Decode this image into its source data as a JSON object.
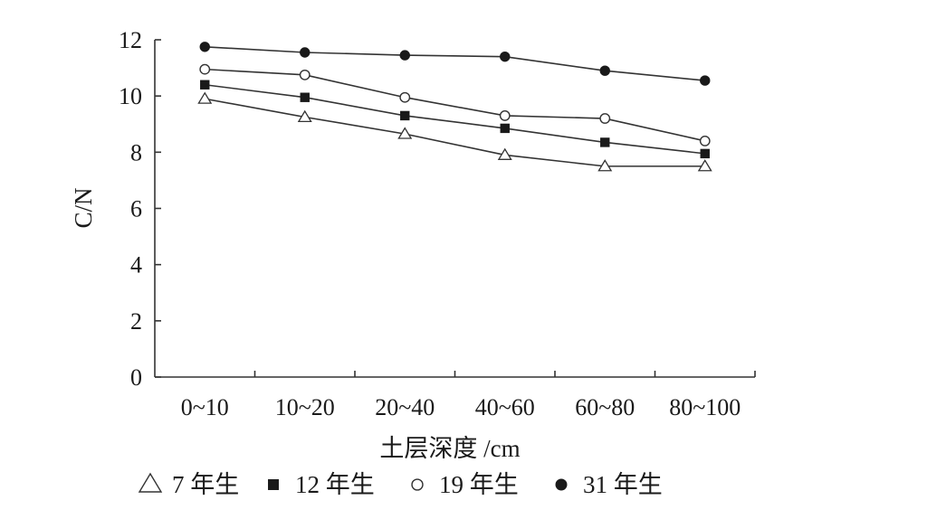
{
  "chart_data": {
    "type": "line",
    "xlabel": "土层深度 /cm",
    "ylabel": "C/N",
    "categories": [
      "0~10",
      "10~20",
      "20~40",
      "40~60",
      "60~80",
      "80~100"
    ],
    "ylim": [
      0,
      12
    ],
    "yticks": [
      0,
      2,
      4,
      6,
      8,
      10,
      12
    ],
    "grid": false,
    "legend_position": "bottom",
    "series": [
      {
        "name": "7 年生",
        "marker": "open-triangle",
        "values": [
          9.9,
          9.25,
          8.65,
          7.9,
          7.5,
          7.5
        ]
      },
      {
        "name": "12 年生",
        "marker": "filled-square",
        "values": [
          10.4,
          9.95,
          9.3,
          8.85,
          8.35,
          7.95
        ]
      },
      {
        "name": "19 年生",
        "marker": "open-circle",
        "values": [
          10.95,
          10.75,
          9.95,
          9.3,
          9.2,
          8.4
        ]
      },
      {
        "name": "31 年生",
        "marker": "filled-circle",
        "values": [
          11.75,
          11.55,
          11.45,
          11.4,
          10.9,
          10.55
        ]
      }
    ]
  }
}
